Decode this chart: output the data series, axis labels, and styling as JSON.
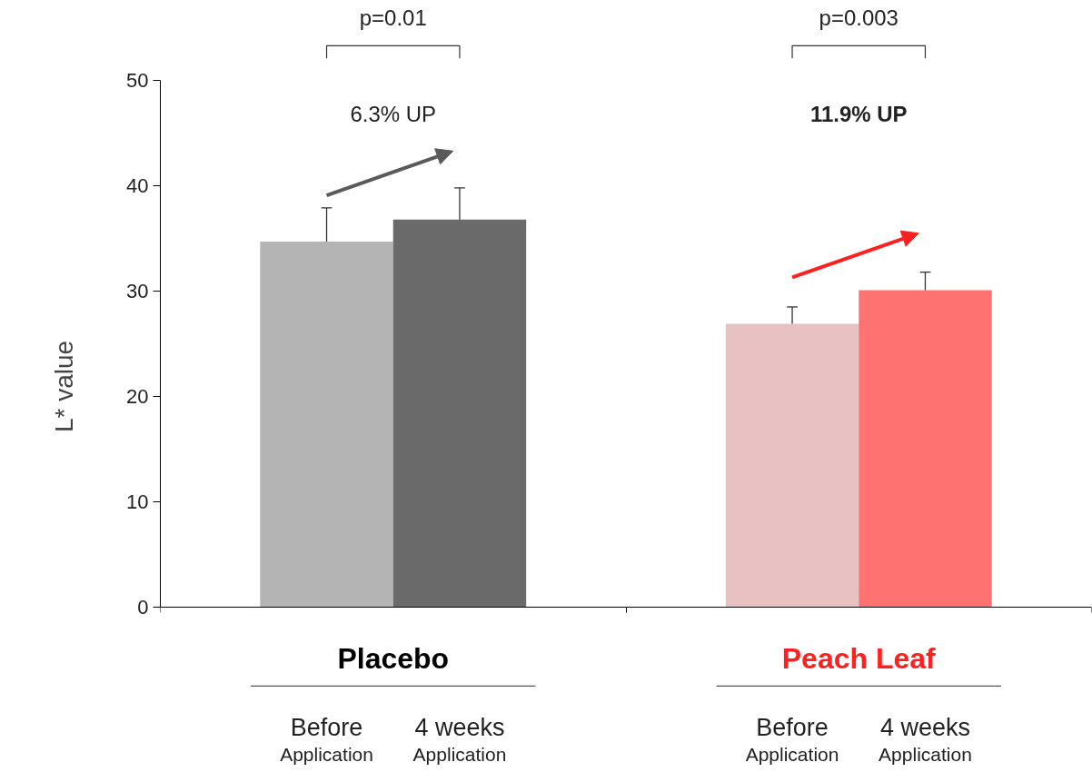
{
  "chart_data": {
    "type": "bar",
    "ylabel": "L* value",
    "categories": [
      "Before Application",
      "4 weeks Application",
      "Before Application",
      "4 weeks Application"
    ],
    "series": [
      {
        "name": "Placebo",
        "color": "#5a5a5a",
        "colors": [
          "#b4b4b4",
          "#6a6a6a",
          null,
          null
        ],
        "values": [
          34.7,
          36.8,
          null,
          null
        ],
        "errors": [
          [
            34.7,
            37.9
          ],
          [
            36.8,
            39.8
          ],
          null,
          null
        ]
      },
      {
        "name": "Peach Leaf",
        "color": "#ff2020",
        "colors": [
          null,
          null,
          "#e8c2c2",
          "#ff7272"
        ],
        "values": [
          null,
          null,
          26.9,
          30.1
        ],
        "errors": [
          null,
          null,
          [
            26.9,
            28.5
          ],
          [
            30.1,
            31.8
          ]
        ]
      }
    ],
    "ylim": [
      0,
      50
    ],
    "yticks": [
      0,
      10,
      20,
      30,
      40,
      50
    ],
    "grid": false,
    "annotations": [
      "p=0.01",
      "p=0.003",
      "6.3% UP",
      "11.9% UP"
    ]
  }
}
